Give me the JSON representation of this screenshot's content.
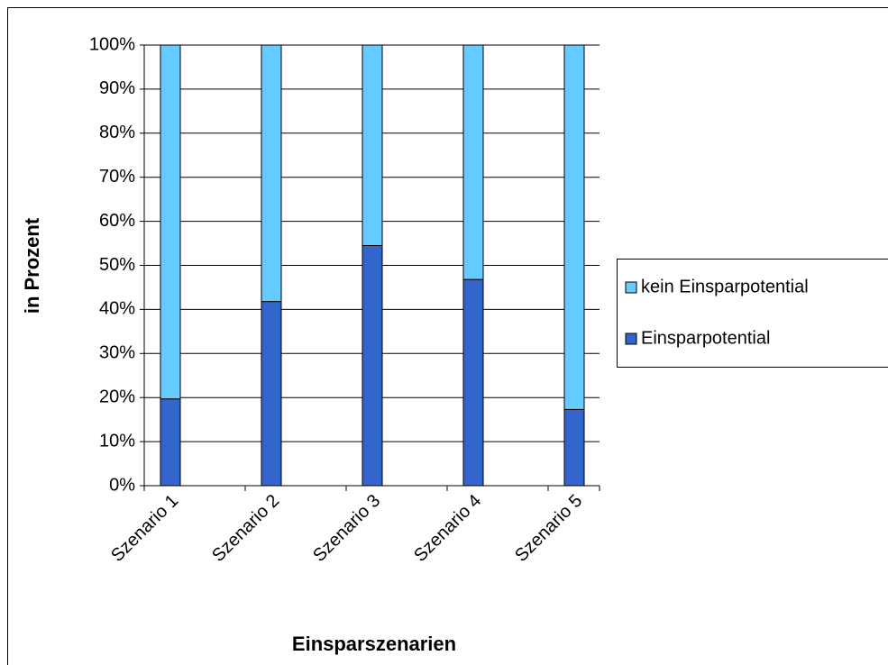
{
  "chart_data": {
    "type": "stacked_bar",
    "y_label": "in Prozent",
    "x_label": "Einsparszenarien",
    "categories": [
      "Szenario 1",
      "Szenario 2",
      "Szenario 3",
      "Szenario 4",
      "Szenario 5"
    ],
    "series": [
      {
        "name": "Einsparpotential",
        "color": "#3366cc",
        "values": [
          19.7,
          41.8,
          54.5,
          46.8,
          17.3
        ]
      },
      {
        "name": "kein Einsparpotential",
        "color": "#66ccff",
        "values": [
          80.3,
          58.2,
          45.5,
          53.2,
          82.7
        ]
      }
    ],
    "ylim": [
      0,
      100
    ],
    "yticks": [
      {
        "value": 0,
        "label": "0%"
      },
      {
        "value": 10,
        "label": "10%"
      },
      {
        "value": 20,
        "label": "20%"
      },
      {
        "value": 30,
        "label": "30%"
      },
      {
        "value": 40,
        "label": "40%"
      },
      {
        "value": 50,
        "label": "50%"
      },
      {
        "value": 60,
        "label": "60%"
      },
      {
        "value": 70,
        "label": "70%"
      },
      {
        "value": 80,
        "label": "80%"
      },
      {
        "value": 90,
        "label": "90%"
      },
      {
        "value": 100,
        "label": "100%"
      }
    ],
    "grid": true,
    "legend": "right"
  }
}
